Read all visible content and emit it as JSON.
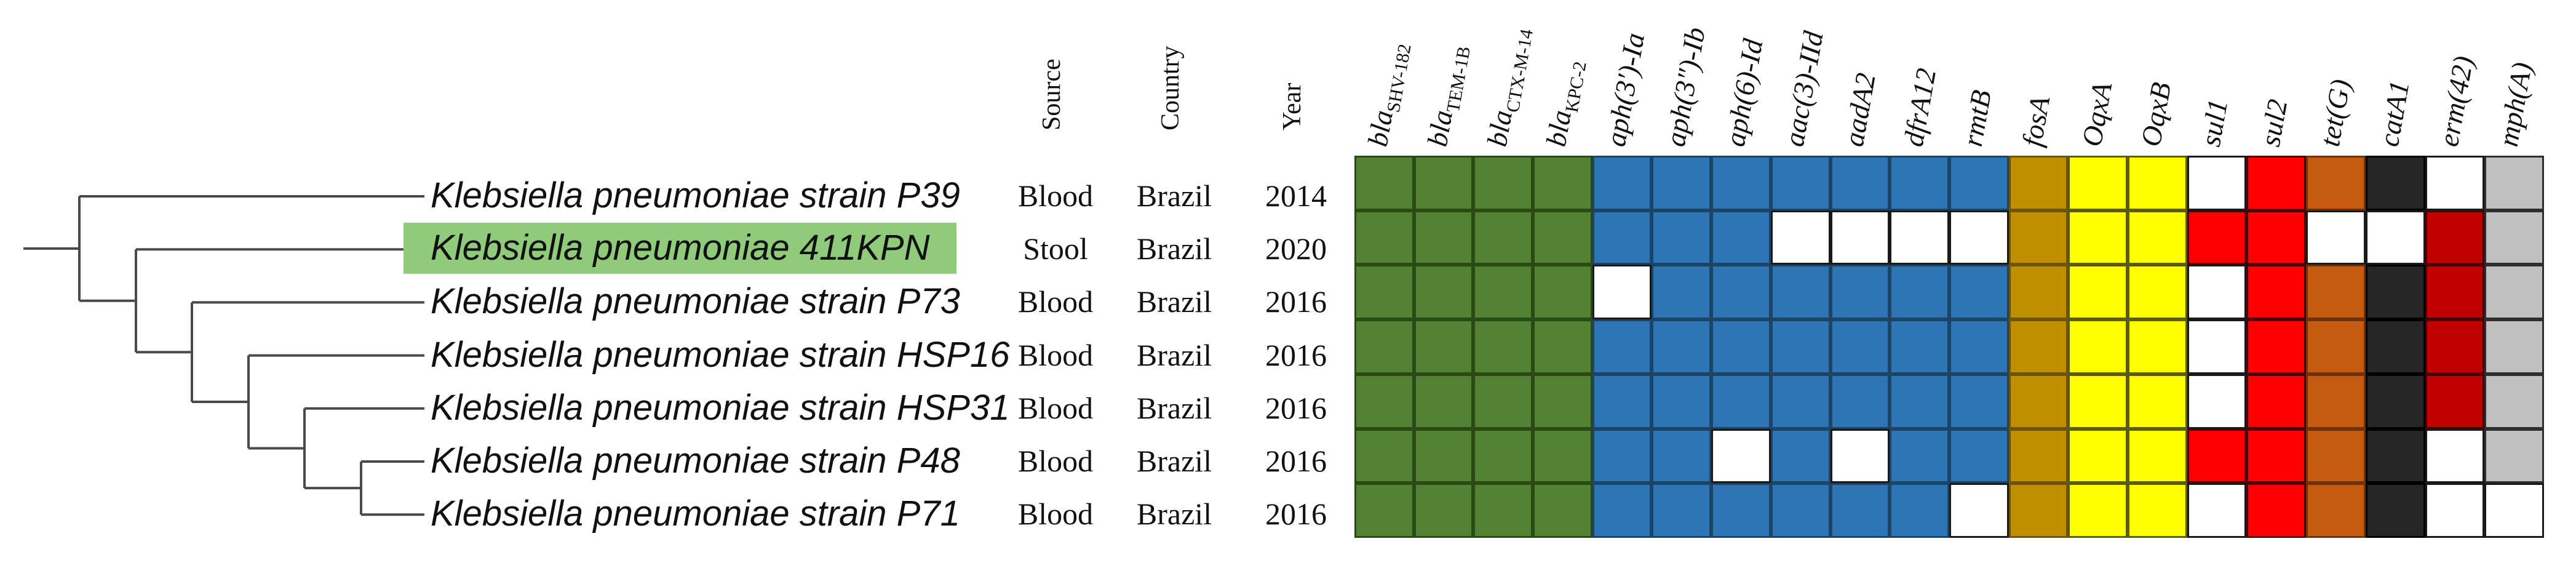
{
  "figure_type": "phylogenetic tree with antimicrobial resistance gene presence/absence heatmap",
  "header": {
    "meta_columns": [
      {
        "id": "source",
        "label": "Source"
      },
      {
        "id": "country",
        "label": "Country"
      },
      {
        "id": "year",
        "label": "Year"
      }
    ],
    "gene_columns": [
      {
        "main": "bla",
        "sub": "SHV-182",
        "color": "green"
      },
      {
        "main": "bla",
        "sub": "TEM-1B",
        "color": "green"
      },
      {
        "main": "bla",
        "sub": "CTX-M-14",
        "color": "green"
      },
      {
        "main": "bla",
        "sub": "KPC-2",
        "color": "green"
      },
      {
        "main": "aph(3′)-Ia",
        "sub": "",
        "color": "blue"
      },
      {
        "main": "aph(3″)-Ib",
        "sub": "",
        "color": "blue"
      },
      {
        "main": "aph(6)-Id",
        "sub": "",
        "color": "blue"
      },
      {
        "main": "aac(3)-IId",
        "sub": "",
        "color": "blue"
      },
      {
        "main": "aadA2",
        "sub": "",
        "color": "blue"
      },
      {
        "main": "dfrA12",
        "sub": "",
        "color": "blue"
      },
      {
        "main": "rmtB",
        "sub": "",
        "color": "blue"
      },
      {
        "main": "fosA",
        "sub": "",
        "color": "gold"
      },
      {
        "main": "OqxA",
        "sub": "",
        "color": "yellow"
      },
      {
        "main": "OqxB",
        "sub": "",
        "color": "yellow"
      },
      {
        "main": "sul1",
        "sub": "",
        "color": "red"
      },
      {
        "main": "sul2",
        "sub": "",
        "color": "red"
      },
      {
        "main": "tet(G)",
        "sub": "",
        "color": "orange"
      },
      {
        "main": "catA1",
        "sub": "",
        "color": "black"
      },
      {
        "main": "erm(42)",
        "sub": "",
        "color": "darkred"
      },
      {
        "main": "mph(A)",
        "sub": "",
        "color": "grey"
      }
    ]
  },
  "rows": [
    {
      "name": "Klebsiella pneumoniae strain P39",
      "highlighted": false,
      "source": "Blood",
      "country": "Brazil",
      "year": "2014",
      "presence": [
        1,
        1,
        1,
        1,
        1,
        1,
        1,
        1,
        1,
        1,
        1,
        1,
        1,
        1,
        0,
        1,
        1,
        1,
        0,
        1
      ]
    },
    {
      "name": "Klebsiella pneumoniae 411KPN",
      "highlighted": true,
      "source": "Stool",
      "country": "Brazil",
      "year": "2020",
      "presence": [
        1,
        1,
        1,
        1,
        1,
        1,
        1,
        0,
        0,
        0,
        0,
        1,
        1,
        1,
        1,
        1,
        0,
        0,
        1,
        1
      ]
    },
    {
      "name": "Klebsiella pneumoniae strain P73",
      "highlighted": false,
      "source": "Blood",
      "country": "Brazil",
      "year": "2016",
      "presence": [
        1,
        1,
        1,
        1,
        0,
        1,
        1,
        1,
        1,
        1,
        1,
        1,
        1,
        1,
        0,
        1,
        1,
        1,
        1,
        1
      ]
    },
    {
      "name": "Klebsiella pneumoniae strain HSP16",
      "highlighted": false,
      "source": "Blood",
      "country": "Brazil",
      "year": "2016",
      "presence": [
        1,
        1,
        1,
        1,
        1,
        1,
        1,
        1,
        1,
        1,
        1,
        1,
        1,
        1,
        0,
        1,
        1,
        1,
        1,
        1
      ]
    },
    {
      "name": "Klebsiella pneumoniae strain HSP31",
      "highlighted": false,
      "source": "Blood",
      "country": "Brazil",
      "year": "2016",
      "presence": [
        1,
        1,
        1,
        1,
        1,
        1,
        1,
        1,
        1,
        1,
        1,
        1,
        1,
        1,
        0,
        1,
        1,
        1,
        1,
        1
      ]
    },
    {
      "name": "Klebsiella pneumoniae strain P48",
      "highlighted": false,
      "source": "Blood",
      "country": "Brazil",
      "year": "2016",
      "presence": [
        1,
        1,
        1,
        1,
        1,
        1,
        0,
        1,
        0,
        1,
        1,
        1,
        1,
        1,
        1,
        1,
        1,
        1,
        0,
        1
      ]
    },
    {
      "name": "Klebsiella pneumoniae strain P71",
      "highlighted": false,
      "source": "Blood",
      "country": "Brazil",
      "year": "2016",
      "presence": [
        1,
        1,
        1,
        1,
        1,
        1,
        1,
        1,
        1,
        1,
        0,
        1,
        1,
        1,
        0,
        1,
        1,
        1,
        0,
        0
      ]
    }
  ],
  "tree": {
    "topology_newick": "(P39,(411KPN,(P73,(HSP16,(HSP31,(P48,P71))))));",
    "leaf_order": [
      "P39",
      "411KPN",
      "P73",
      "HSP16",
      "HSP31",
      "P48",
      "P71"
    ]
  },
  "colors": {
    "green": {
      "fill": "#548235",
      "border": "#2a4a15"
    },
    "blue": {
      "fill": "#2E75B6",
      "border": "#1c4467"
    },
    "gold": {
      "fill": "#BF8F00",
      "border": "#6e5300"
    },
    "yellow": {
      "fill": "#FFFF00",
      "border": "#5c5c00"
    },
    "red": {
      "fill": "#FF0000",
      "border": "#4d0000"
    },
    "orange": {
      "fill": "#C55A11",
      "border": "#6e3108"
    },
    "black": {
      "fill": "#262626",
      "border": "#000000"
    },
    "darkred": {
      "fill": "#C00000",
      "border": "#470000"
    },
    "grey": {
      "fill": "#C0C0C0",
      "border": "#2e2e2e"
    },
    "absent": {
      "fill": "#FFFFFF",
      "border": "#1a1a1a"
    },
    "highlight": "#8FCB7B",
    "tree_line": "#4a4a4a",
    "text": "#111111"
  },
  "chart_data": {
    "type": "heatmap",
    "title": "",
    "rows": [
      "Klebsiella pneumoniae strain P39",
      "Klebsiella pneumoniae 411KPN",
      "Klebsiella pneumoniae strain P73",
      "Klebsiella pneumoniae strain HSP16",
      "Klebsiella pneumoniae strain HSP31",
      "Klebsiella pneumoniae strain P48",
      "Klebsiella pneumoniae strain P71"
    ],
    "columns": [
      "blaSHV-182",
      "blaTEM-1B",
      "blaCTX-M-14",
      "blaKPC-2",
      "aph(3′)-Ia",
      "aph(3″)-Ib",
      "aph(6)-Id",
      "aac(3)-IId",
      "aadA2",
      "dfrA12",
      "rmtB",
      "fosA",
      "OqxA",
      "OqxB",
      "sul1",
      "sul2",
      "tet(G)",
      "catA1",
      "erm(42)",
      "mph(A)"
    ],
    "values": [
      [
        1,
        1,
        1,
        1,
        1,
        1,
        1,
        1,
        1,
        1,
        1,
        1,
        1,
        1,
        0,
        1,
        1,
        1,
        0,
        1
      ],
      [
        1,
        1,
        1,
        1,
        1,
        1,
        1,
        0,
        0,
        0,
        0,
        1,
        1,
        1,
        1,
        1,
        0,
        0,
        1,
        1
      ],
      [
        1,
        1,
        1,
        1,
        0,
        1,
        1,
        1,
        1,
        1,
        1,
        1,
        1,
        1,
        0,
        1,
        1,
        1,
        1,
        1
      ],
      [
        1,
        1,
        1,
        1,
        1,
        1,
        1,
        1,
        1,
        1,
        1,
        1,
        1,
        1,
        0,
        1,
        1,
        1,
        1,
        1
      ],
      [
        1,
        1,
        1,
        1,
        1,
        1,
        1,
        1,
        1,
        1,
        1,
        1,
        1,
        1,
        0,
        1,
        1,
        1,
        1,
        1
      ],
      [
        1,
        1,
        1,
        1,
        1,
        1,
        0,
        1,
        0,
        1,
        1,
        1,
        1,
        1,
        1,
        1,
        1,
        1,
        0,
        1
      ],
      [
        1,
        1,
        1,
        1,
        1,
        1,
        1,
        1,
        1,
        1,
        0,
        1,
        1,
        1,
        0,
        1,
        1,
        1,
        0,
        0
      ]
    ],
    "row_metadata": {
      "Source": [
        "Blood",
        "Stool",
        "Blood",
        "Blood",
        "Blood",
        "Blood",
        "Blood"
      ],
      "Country": [
        "Brazil",
        "Brazil",
        "Brazil",
        "Brazil",
        "Brazil",
        "Brazil",
        "Brazil"
      ],
      "Year": [
        "2014",
        "2020",
        "2016",
        "2016",
        "2016",
        "2016",
        "2016"
      ]
    },
    "highlighted_row": "Klebsiella pneumoniae 411KPN",
    "tree_newick": "(P39,(411KPN,(P73,(HSP16,(HSP31,(P48,P71))))));",
    "legend_position": "none",
    "grid": true
  }
}
